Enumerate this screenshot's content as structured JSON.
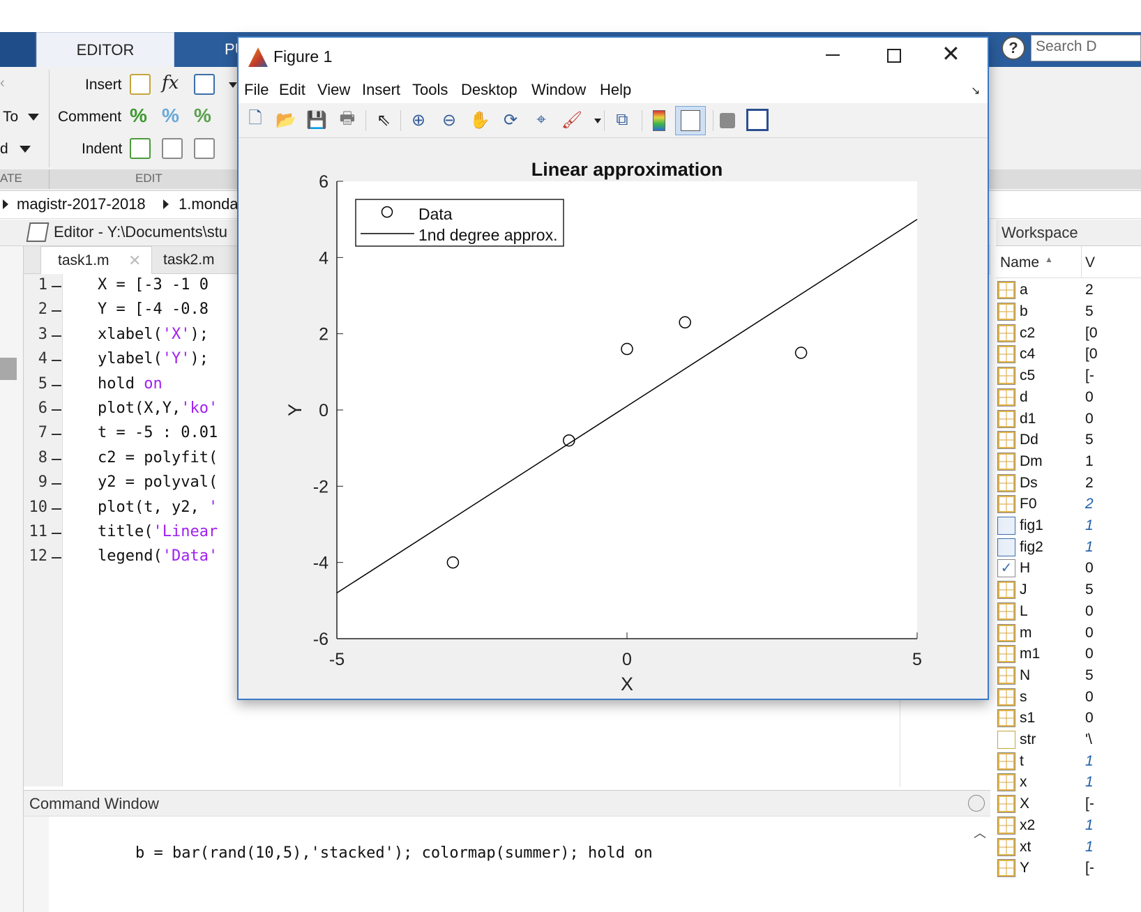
{
  "ribbon": {
    "tabs": [
      "EDITOR",
      "PU"
    ],
    "insert_label": "Insert",
    "comment_label": "Comment",
    "indent_label": "Indent",
    "goto_label": "To",
    "find_label": "d",
    "fx_label": "fx",
    "section_left": "ATE",
    "section_edit": "EDIT",
    "search_placeholder": "Search D",
    "help_label": "?"
  },
  "path": {
    "items": [
      "magistr-2017-2018",
      "1.monda"
    ]
  },
  "editor": {
    "title": "Editor - Y:\\Documents\\stu",
    "tabs": [
      "task1.m",
      "task2.m"
    ],
    "lines": [
      {
        "num": "1",
        "code": "X = [-3 -1 0 "
      },
      {
        "num": "2",
        "code": "Y = [-4 -0.8 "
      },
      {
        "num": "3",
        "pre": "xlabel(",
        "str": "'X'",
        "post": ");"
      },
      {
        "num": "4",
        "pre": "ylabel(",
        "str": "'Y'",
        "post": ");"
      },
      {
        "num": "5",
        "pre": "hold ",
        "str": "on",
        "post": ""
      },
      {
        "num": "6",
        "pre": "plot(X,Y,",
        "str": "'ko'",
        "post": ""
      },
      {
        "num": "7",
        "code": "t = -5 : 0.01"
      },
      {
        "num": "8",
        "code": "c2 = polyfit("
      },
      {
        "num": "9",
        "code": "y2 = polyval("
      },
      {
        "num": "10",
        "pre": "plot(t, y2, ",
        "str": "'",
        "post": ""
      },
      {
        "num": "11",
        "pre": "title(",
        "str": "'Linear",
        "post": ""
      },
      {
        "num": "12",
        "pre": "legend(",
        "str": "'Data'",
        "post": ""
      }
    ]
  },
  "command_window": {
    "title": "Command Window",
    "line": "b = bar(rand(10,5),'stacked'); colormap(summer); hold on"
  },
  "workspace": {
    "title": "Workspace",
    "col_name": "Name",
    "col_value": "V",
    "vars": [
      {
        "name": "a",
        "val": "2",
        "icon": "grid",
        "italic": false
      },
      {
        "name": "b",
        "val": "5",
        "icon": "grid",
        "italic": false
      },
      {
        "name": "c2",
        "val": "[0",
        "icon": "grid",
        "italic": false
      },
      {
        "name": "c4",
        "val": "[0",
        "icon": "grid",
        "italic": false
      },
      {
        "name": "c5",
        "val": "[-",
        "icon": "grid",
        "italic": false
      },
      {
        "name": "d",
        "val": "0",
        "icon": "grid",
        "italic": false
      },
      {
        "name": "d1",
        "val": "0",
        "icon": "grid",
        "italic": false
      },
      {
        "name": "Dd",
        "val": "5",
        "icon": "grid",
        "italic": false
      },
      {
        "name": "Dm",
        "val": "1",
        "icon": "grid",
        "italic": false
      },
      {
        "name": "Ds",
        "val": "2",
        "icon": "grid",
        "italic": false
      },
      {
        "name": "F0",
        "val": "2",
        "icon": "grid",
        "italic": true
      },
      {
        "name": "fig1",
        "val": "1",
        "icon": "cube",
        "italic": true
      },
      {
        "name": "fig2",
        "val": "1",
        "icon": "cube",
        "italic": true
      },
      {
        "name": "H",
        "val": "0",
        "icon": "check",
        "italic": false
      },
      {
        "name": "J",
        "val": "5",
        "icon": "grid",
        "italic": false
      },
      {
        "name": "L",
        "val": "0",
        "icon": "grid",
        "italic": false
      },
      {
        "name": "m",
        "val": "0",
        "icon": "grid",
        "italic": false
      },
      {
        "name": "m1",
        "val": "0",
        "icon": "grid",
        "italic": false
      },
      {
        "name": "N",
        "val": "5",
        "icon": "grid",
        "italic": false
      },
      {
        "name": "s",
        "val": "0",
        "icon": "grid",
        "italic": false
      },
      {
        "name": "s1",
        "val": "0",
        "icon": "grid",
        "italic": false
      },
      {
        "name": "str",
        "val": "'\\",
        "icon": "char",
        "italic": false
      },
      {
        "name": "t",
        "val": "1",
        "icon": "grid",
        "italic": true
      },
      {
        "name": "x",
        "val": "1",
        "icon": "grid",
        "italic": true
      },
      {
        "name": "X",
        "val": "[-",
        "icon": "grid",
        "italic": false
      },
      {
        "name": "x2",
        "val": "1",
        "icon": "grid",
        "italic": true
      },
      {
        "name": "xt",
        "val": "1",
        "icon": "grid",
        "italic": true
      },
      {
        "name": "Y",
        "val": "[-",
        "icon": "grid",
        "italic": false
      }
    ]
  },
  "figure": {
    "window_title": "Figure 1",
    "menu": [
      "File",
      "Edit",
      "View",
      "Insert",
      "Tools",
      "Desktop",
      "Window",
      "Help"
    ]
  },
  "chart_data": {
    "type": "scatter",
    "title": "Linear approximation",
    "xlabel": "X",
    "ylabel": "Y",
    "xlim": [
      -5,
      5
    ],
    "ylim": [
      -6,
      6
    ],
    "xticks": [
      "-5",
      "0",
      "5"
    ],
    "yticks": [
      "6",
      "4",
      "2",
      "0",
      "-2",
      "-4",
      "-6"
    ],
    "legend_position": "top-left",
    "series": [
      {
        "name": "Data",
        "kind": "markers",
        "x": [
          -3,
          -1,
          0,
          1,
          3
        ],
        "y": [
          -4,
          -0.8,
          1.6,
          2.3,
          1.5
        ]
      },
      {
        "name": "1nd degree approx.",
        "kind": "line",
        "x": [
          -5,
          5
        ],
        "y": [
          -4.8,
          5.0
        ]
      }
    ],
    "colors": {
      "axes_bg": "#ffffff",
      "line": "#000000"
    }
  },
  "colors": {
    "ribbon_blue": "#2b5d9c",
    "string_purple": "#a020f0",
    "figure_border": "#3b79c7"
  }
}
